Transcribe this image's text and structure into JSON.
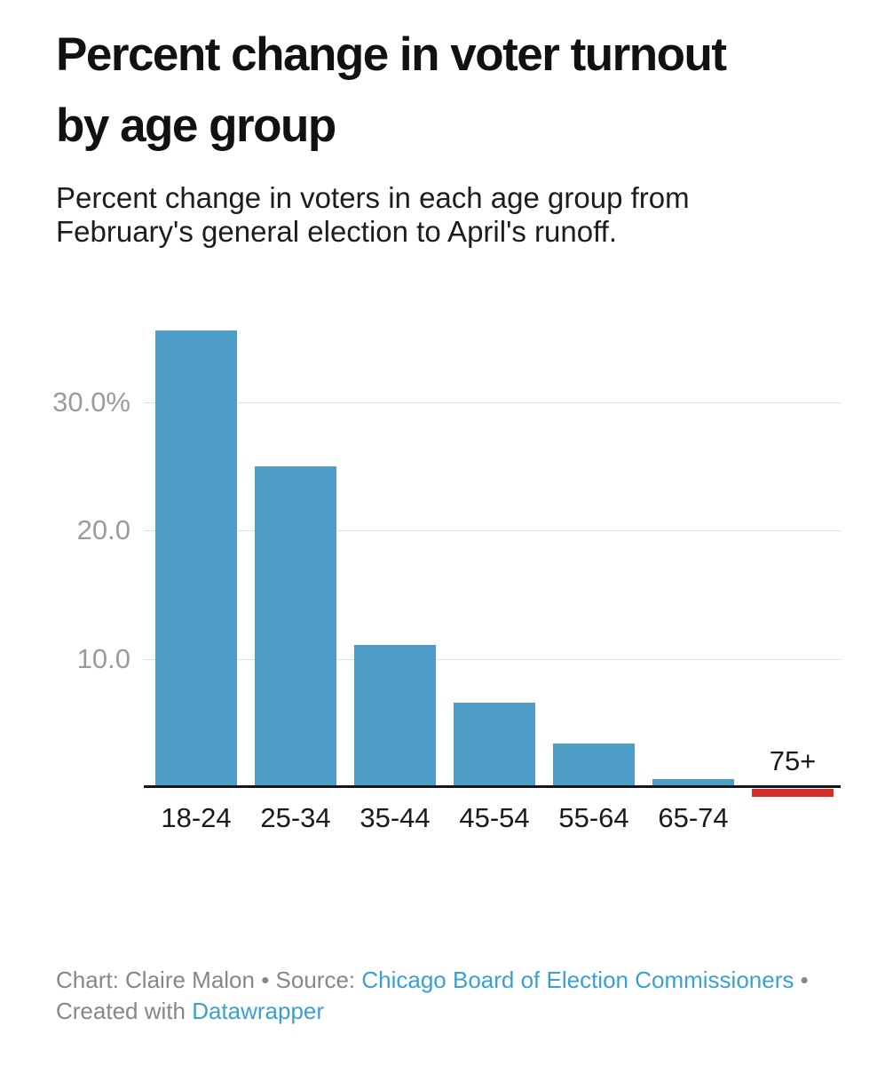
{
  "header": {
    "title_lines": [
      "Percent change in voter turnout",
      "by age group"
    ],
    "subtitle_lines": [
      "Percent change in voters in each age group from",
      "February's general election to April's runoff."
    ]
  },
  "chart_data": {
    "type": "bar",
    "title": "Percent change in voter turnout by age group",
    "subtitle": "Percent change in voters in each age group from February's general election to April's runoff.",
    "categories": [
      "18-24",
      "25-34",
      "35-44",
      "45-54",
      "55-64",
      "65-74",
      "75+"
    ],
    "values": [
      35.6,
      25.0,
      11.1,
      6.6,
      3.4,
      0.6,
      -0.6
    ],
    "xlabel": "",
    "ylabel": "",
    "y_ticks": [
      {
        "label": "30.0%",
        "value": 30
      },
      {
        "label": "20.0",
        "value": 20
      },
      {
        "label": "10.0",
        "value": 10
      }
    ],
    "ylim": [
      -1.5,
      36.5
    ],
    "grid": "horizontal",
    "legend": "none"
  },
  "footer": {
    "segments": [
      {
        "type": "text",
        "text": "Chart: Claire Malon • Source: "
      },
      {
        "type": "link",
        "text": "Chicago Board of Election Commissioners"
      },
      {
        "type": "text",
        "text": " • Created with "
      },
      {
        "type": "link",
        "text": "Datawrapper"
      }
    ]
  },
  "colors": {
    "background": "#ffffff",
    "title": "#111111",
    "subtitle": "#1d1d1d",
    "bar_positive": "#4e9dc7",
    "bar_negative": "#d2302c",
    "gridline": "#e0e0e0",
    "axis_line": "#16161a",
    "y_tick_label": "#9b9b9b",
    "x_axis_label": "#1a1a1a",
    "footer_text": "#878787",
    "footer_link": "#3aa0d2"
  }
}
